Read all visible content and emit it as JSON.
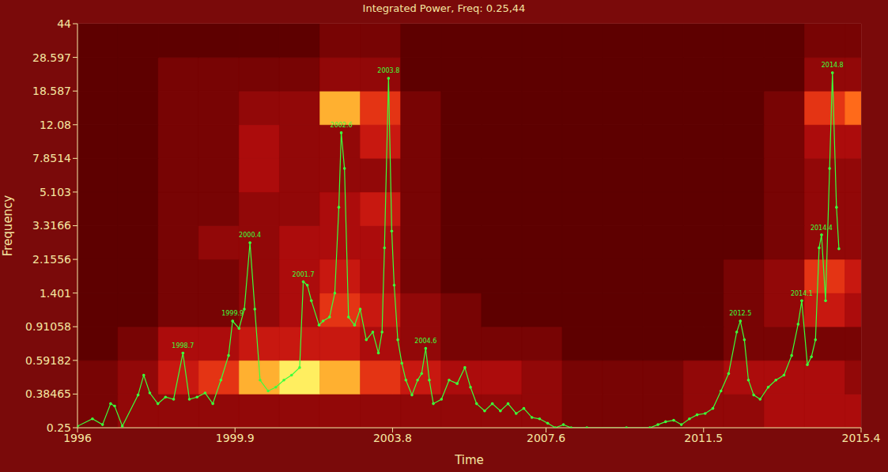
{
  "chart_data": {
    "type": "line",
    "title": "Integrated Power, Freq: 0.25,44",
    "x_label": "Time",
    "y_label": "Frequency",
    "log": "y",
    "grid": true,
    "color": "#3cff3c",
    "marker": "circle",
    "x": [
      1996.0,
      1996.37,
      1996.62,
      1996.82,
      1996.92,
      1997.11,
      1997.5,
      1997.64,
      1997.79,
      1997.99,
      1998.18,
      1998.38,
      1998.61,
      1998.77,
      1998.96,
      1999.16,
      1999.35,
      1999.55,
      1999.74,
      1999.84,
      2000.0,
      2000.13,
      2000.27,
      2000.39,
      2000.52,
      2000.72,
      2000.91,
      2001.11,
      2001.3,
      2001.5,
      2001.59,
      2001.69,
      2001.79,
      2001.98,
      2002.08,
      2002.24,
      2002.37,
      2002.47,
      2002.53,
      2002.61,
      2002.71,
      2002.86,
      2003.0,
      2003.15,
      2003.31,
      2003.45,
      2003.54,
      2003.6,
      2003.7,
      2003.78,
      2003.84,
      2003.93,
      2004.03,
      2004.13,
      2004.28,
      2004.42,
      2004.52,
      2004.62,
      2004.71,
      2004.81,
      2005.01,
      2005.2,
      2005.4,
      2005.59,
      2005.73,
      2005.88,
      2006.08,
      2006.27,
      2006.47,
      2006.66,
      2006.86,
      2007.05,
      2007.25,
      2007.44,
      2007.64,
      2007.83,
      2008.03,
      2008.22,
      2008.61,
      2009.59,
      2010.17,
      2010.37,
      2010.56,
      2010.76,
      2010.95,
      2011.15,
      2011.34,
      2011.54,
      2011.73,
      2011.93,
      2012.12,
      2012.32,
      2012.41,
      2012.51,
      2012.61,
      2012.74,
      2012.9,
      2013.1,
      2013.29,
      2013.49,
      2013.68,
      2013.84,
      2013.93,
      2014.07,
      2014.17,
      2014.27,
      2014.36,
      2014.42,
      2014.52,
      2014.62,
      2014.69,
      2014.79,
      2014.85
    ],
    "values": [
      0.255,
      0.28,
      0.26,
      0.34,
      0.33,
      0.255,
      0.38,
      0.49,
      0.39,
      0.34,
      0.37,
      0.36,
      0.65,
      0.36,
      0.37,
      0.39,
      0.34,
      0.46,
      0.63,
      0.98,
      0.89,
      1.14,
      2.67,
      1.14,
      0.46,
      0.4,
      0.42,
      0.46,
      0.49,
      0.54,
      1.62,
      1.55,
      1.27,
      0.93,
      0.98,
      1.03,
      1.4,
      4.2,
      10.9,
      6.9,
      1.03,
      0.93,
      1.14,
      0.77,
      0.85,
      0.65,
      0.85,
      2.5,
      21.9,
      3.1,
      1.55,
      0.77,
      0.57,
      0.46,
      0.38,
      0.46,
      0.5,
      0.69,
      0.46,
      0.34,
      0.36,
      0.46,
      0.44,
      0.54,
      0.42,
      0.34,
      0.31,
      0.34,
      0.31,
      0.34,
      0.3,
      0.32,
      0.285,
      0.28,
      0.265,
      0.25,
      0.26,
      0.25,
      0.25,
      0.25,
      0.25,
      0.26,
      0.27,
      0.275,
      0.26,
      0.28,
      0.295,
      0.3,
      0.32,
      0.4,
      0.5,
      0.85,
      0.98,
      0.77,
      0.46,
      0.38,
      0.36,
      0.42,
      0.46,
      0.49,
      0.63,
      0.94,
      1.27,
      0.56,
      0.62,
      0.77,
      2.5,
      2.95,
      1.27,
      6.9,
      23.5,
      4.2,
      2.47
    ],
    "xlim": [
      1996,
      2015.4
    ],
    "xticks": [
      1996,
      1999.9,
      2003.8,
      2007.6,
      2011.5,
      2015.4
    ],
    "ylim": [
      0.25,
      44
    ],
    "yticks": [
      0.25,
      0.38465,
      0.59182,
      0.91058,
      1.401,
      2.1556,
      3.3166,
      5.103,
      7.8514,
      12.08,
      18.587,
      28.597,
      44
    ],
    "annotations": [
      {
        "x": 1998.61,
        "y": 0.65,
        "text": "1998.7"
      },
      {
        "x": 1999.84,
        "y": 0.98,
        "text": "1999.9"
      },
      {
        "x": 2000.27,
        "y": 2.67,
        "text": "2000.4"
      },
      {
        "x": 2001.59,
        "y": 1.62,
        "text": "2001.7"
      },
      {
        "x": 2002.53,
        "y": 10.9,
        "text": "2002.6"
      },
      {
        "x": 2003.7,
        "y": 21.9,
        "text": "2003.8"
      },
      {
        "x": 2004.62,
        "y": 0.69,
        "text": "2004.6"
      },
      {
        "x": 2012.41,
        "y": 0.98,
        "text": "2012.5"
      },
      {
        "x": 2013.93,
        "y": 1.27,
        "text": "2014.1"
      },
      {
        "x": 2014.42,
        "y": 2.95,
        "text": "2014.4"
      },
      {
        "x": 2014.69,
        "y": 23.5,
        "text": "2014.8"
      }
    ],
    "heatmap": {
      "x_edges": [
        1996,
        1997,
        1998,
        1999,
        2000,
        2001,
        2002,
        2003,
        2004,
        2005,
        2006,
        2007,
        2008,
        2009,
        2010,
        2011,
        2012,
        2013,
        2014,
        2015,
        2015.4
      ],
      "y_edges": [
        0.25,
        0.38465,
        0.59182,
        0.91058,
        1.401,
        2.1556,
        3.3166,
        5.103,
        7.8514,
        12.08,
        18.587,
        28.597,
        44
      ],
      "values": [
        [
          2,
          3,
          3,
          3,
          3,
          3,
          3,
          3,
          3,
          3,
          3,
          3,
          2,
          2,
          2,
          3,
          3,
          4,
          4,
          4
        ],
        [
          2,
          3,
          5,
          6,
          8,
          9,
          8,
          6,
          5,
          4,
          4,
          3,
          2,
          2,
          2,
          3,
          4,
          4,
          4,
          3
        ],
        [
          1,
          2,
          4,
          4,
          5,
          5,
          5,
          4,
          3,
          2,
          2,
          2,
          1,
          1,
          1,
          1,
          2,
          2,
          2,
          2
        ],
        [
          1,
          1,
          2,
          2,
          3,
          4,
          6,
          5,
          3,
          2,
          1,
          1,
          1,
          1,
          1,
          1,
          2,
          3,
          5,
          4
        ],
        [
          1,
          1,
          2,
          2,
          3,
          4,
          5,
          4,
          2,
          1,
          1,
          1,
          1,
          1,
          1,
          1,
          2,
          3,
          6,
          5
        ],
        [
          1,
          1,
          2,
          3,
          3,
          4,
          4,
          4,
          2,
          1,
          1,
          1,
          1,
          1,
          1,
          1,
          1,
          2,
          3,
          3
        ],
        [
          1,
          1,
          2,
          2,
          3,
          3,
          4,
          5,
          2,
          1,
          1,
          1,
          1,
          1,
          1,
          1,
          1,
          2,
          3,
          3
        ],
        [
          1,
          1,
          2,
          2,
          4,
          3,
          3,
          3,
          2,
          1,
          1,
          1,
          1,
          1,
          1,
          1,
          1,
          2,
          3,
          3
        ],
        [
          1,
          1,
          2,
          2,
          4,
          3,
          3,
          5,
          2,
          1,
          1,
          1,
          1,
          1,
          1,
          1,
          1,
          2,
          4,
          4
        ],
        [
          1,
          1,
          2,
          2,
          3,
          3,
          8,
          6,
          2,
          1,
          1,
          1,
          1,
          1,
          1,
          1,
          1,
          2,
          6,
          7
        ],
        [
          1,
          1,
          2,
          2,
          2,
          2,
          3,
          3,
          1,
          1,
          1,
          1,
          1,
          1,
          1,
          1,
          1,
          1,
          3,
          3
        ],
        [
          1,
          1,
          1,
          1,
          1,
          1,
          2,
          2,
          1,
          1,
          1,
          1,
          1,
          1,
          1,
          1,
          1,
          1,
          2,
          2
        ]
      ]
    }
  }
}
